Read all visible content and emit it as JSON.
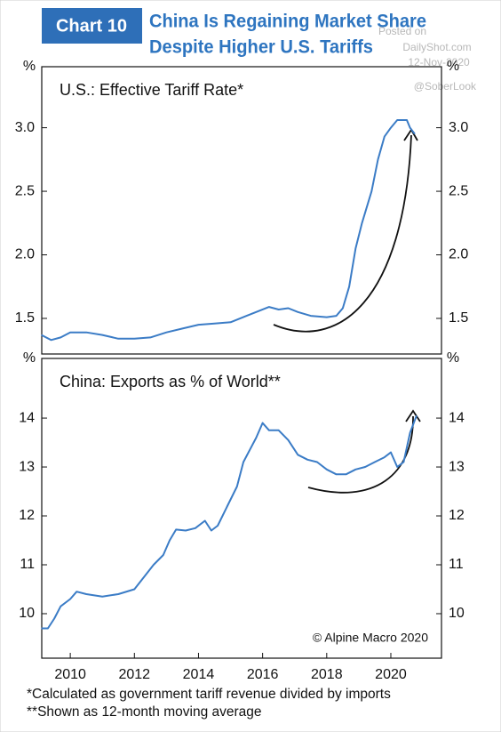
{
  "header": {
    "chart_label": "Chart 10",
    "title_lines": [
      "China Is Regaining Market Share",
      "Despite Higher U.S. Tariffs"
    ],
    "watermark": [
      "Posted on",
      "DailyShot.com",
      "12-Nov-2020",
      "@SoberLook"
    ]
  },
  "chart_data": [
    {
      "type": "line",
      "title": "U.S.: Effective Tariff Rate*",
      "y_label": "%",
      "xlim": [
        2009.11,
        2021.58
      ],
      "ylim": [
        1.22,
        3.48
      ],
      "yticks": [
        1.5,
        {
          "value": 2,
          "label": "2.0"
        },
        2.5,
        {
          "value": 3,
          "label": "3.0"
        }
      ],
      "series": [
        {
          "color": "#3b7cc6",
          "x": [
            2009.1,
            2009.4,
            2009.7,
            2010.0,
            2010.5,
            2011.0,
            2011.5,
            2012.0,
            2012.5,
            2013.0,
            2013.5,
            2014.0,
            2014.5,
            2015.0,
            2015.5,
            2015.8,
            2016.2,
            2016.5,
            2016.8,
            2017.1,
            2017.5,
            2018.0,
            2018.3,
            2018.5,
            2018.7,
            2018.9,
            2019.1,
            2019.4,
            2019.6,
            2019.8,
            2020.0,
            2020.2,
            2020.5,
            2020.6,
            2020.75
          ],
          "values": [
            1.37,
            1.33,
            1.35,
            1.39,
            1.39,
            1.37,
            1.34,
            1.34,
            1.35,
            1.39,
            1.42,
            1.45,
            1.46,
            1.47,
            1.52,
            1.55,
            1.59,
            1.57,
            1.58,
            1.55,
            1.52,
            1.51,
            1.52,
            1.58,
            1.75,
            2.05,
            2.25,
            2.5,
            2.75,
            2.93,
            3.0,
            3.06,
            3.06,
            3.0,
            2.95
          ]
        }
      ]
    },
    {
      "type": "line",
      "title": "China: Exports as % of World**",
      "y_label": "%",
      "annotation": "© Alpine Macro 2020",
      "xlim": [
        2009.11,
        2021.58
      ],
      "xticks": [
        2010,
        2012,
        2014,
        2016,
        2018,
        2020
      ],
      "ylim": [
        9.09,
        15.22
      ],
      "yticks": [
        10,
        11,
        12,
        13,
        14
      ],
      "series": [
        {
          "color": "#3b7cc6",
          "x": [
            2009.1,
            2009.3,
            2009.5,
            2009.7,
            2010.0,
            2010.2,
            2010.5,
            2011.0,
            2011.5,
            2012.0,
            2012.3,
            2012.6,
            2012.9,
            2013.1,
            2013.3,
            2013.6,
            2013.9,
            2014.2,
            2014.4,
            2014.6,
            2014.9,
            2015.2,
            2015.4,
            2015.6,
            2015.8,
            2016.0,
            2016.2,
            2016.5,
            2016.8,
            2017.1,
            2017.4,
            2017.7,
            2018.0,
            2018.3,
            2018.6,
            2018.9,
            2019.2,
            2019.5,
            2019.8,
            2020.0,
            2020.2,
            2020.4,
            2020.6,
            2020.8
          ],
          "values": [
            9.7,
            9.7,
            9.9,
            10.15,
            10.3,
            10.45,
            10.4,
            10.35,
            10.4,
            10.5,
            10.75,
            11.0,
            11.2,
            11.5,
            11.72,
            11.7,
            11.75,
            11.9,
            11.7,
            11.8,
            12.2,
            12.6,
            13.1,
            13.35,
            13.6,
            13.9,
            13.75,
            13.75,
            13.55,
            13.25,
            13.15,
            13.1,
            12.95,
            12.85,
            12.85,
            12.95,
            13.0,
            13.1,
            13.2,
            13.3,
            13.0,
            13.1,
            13.7,
            14.05
          ]
        }
      ]
    }
  ],
  "footnotes": [
    "*Calculated as government tariff revenue divided by imports",
    "**Shown as 12-month moving average"
  ]
}
